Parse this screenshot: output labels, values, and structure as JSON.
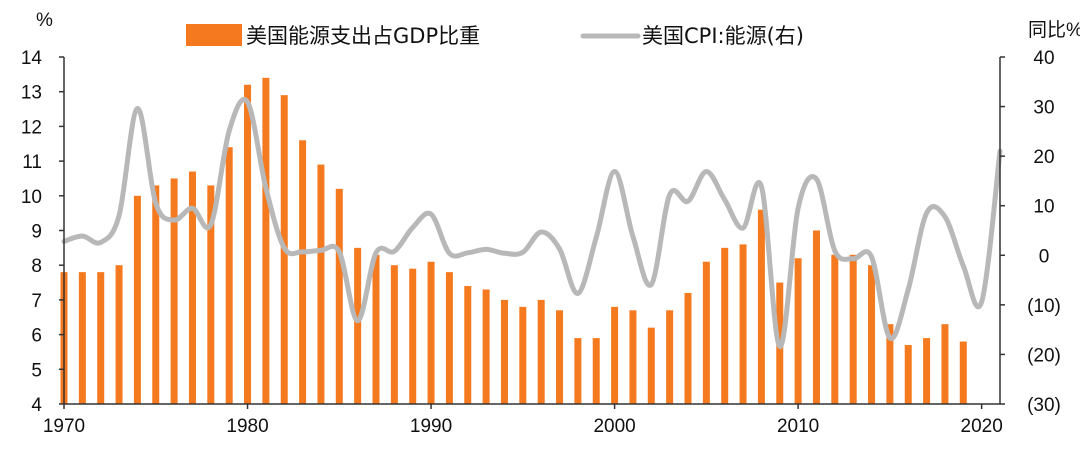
{
  "chart_data": {
    "type": "bar",
    "title": "",
    "left_axis": {
      "unit_label": "%",
      "min": 4,
      "max": 14,
      "ticks": [
        4,
        5,
        6,
        7,
        8,
        9,
        10,
        11,
        12,
        13,
        14
      ]
    },
    "right_axis": {
      "unit_label": "同比%",
      "min": -30,
      "max": 40,
      "ticks": [
        {
          "value": 40,
          "label": "40"
        },
        {
          "value": 30,
          "label": "30"
        },
        {
          "value": 20,
          "label": "20"
        },
        {
          "value": 10,
          "label": "10"
        },
        {
          "value": 0,
          "label": "0"
        },
        {
          "value": -10,
          "label": "(10)"
        },
        {
          "value": -20,
          "label": "(20)"
        },
        {
          "value": -30,
          "label": "(30)"
        }
      ],
      "negative_color": "#cc0000"
    },
    "x_axis": {
      "min": 1970,
      "max": 2021,
      "ticks": [
        1970,
        1980,
        1990,
        2000,
        2010,
        2020
      ]
    },
    "colors": {
      "bar": "#f57a1f",
      "line": "#b8b8b8",
      "axis": "#333333"
    },
    "legend": [
      {
        "label": "美国能源支出占GDP比重",
        "kind": "bar",
        "color": "#f57a1f"
      },
      {
        "label": "美国CPI:能源(右)",
        "kind": "line",
        "color": "#b8b8b8"
      }
    ],
    "series": [
      {
        "name": "美国能源支出占GDP比重",
        "type": "bar",
        "axis": "left",
        "x": [
          1970,
          1971,
          1972,
          1973,
          1974,
          1975,
          1976,
          1977,
          1978,
          1979,
          1980,
          1981,
          1982,
          1983,
          1984,
          1985,
          1986,
          1987,
          1988,
          1989,
          1990,
          1991,
          1992,
          1993,
          1994,
          1995,
          1996,
          1997,
          1998,
          1999,
          2000,
          2001,
          2002,
          2003,
          2004,
          2005,
          2006,
          2007,
          2008,
          2009,
          2010,
          2011,
          2012,
          2013,
          2014,
          2015,
          2016,
          2017,
          2018,
          2019
        ],
        "values": [
          7.8,
          7.8,
          7.8,
          8.0,
          10.0,
          10.3,
          10.5,
          10.7,
          10.3,
          11.4,
          13.2,
          13.4,
          12.9,
          11.6,
          10.9,
          10.2,
          8.5,
          8.3,
          8.0,
          7.9,
          8.1,
          7.8,
          7.4,
          7.3,
          7.0,
          6.8,
          7.0,
          6.7,
          5.9,
          5.9,
          6.8,
          6.7,
          6.2,
          6.7,
          7.2,
          8.1,
          8.5,
          8.6,
          9.6,
          7.5,
          8.2,
          9.0,
          8.3,
          8.3,
          8.0,
          6.3,
          5.7,
          5.9,
          6.3,
          5.8
        ]
      },
      {
        "name": "美国CPI:能源(右)",
        "type": "line",
        "axis": "right",
        "x": [
          1970,
          1971,
          1972,
          1973,
          1974,
          1975,
          1976,
          1977,
          1978,
          1979,
          1980,
          1981,
          1982,
          1983,
          1984,
          1985,
          1986,
          1987,
          1988,
          1989,
          1990,
          1991,
          1992,
          1993,
          1994,
          1995,
          1996,
          1997,
          1998,
          1999,
          2000,
          2001,
          2002,
          2003,
          2004,
          2005,
          2006,
          2007,
          2008,
          2009,
          2010,
          2011,
          2012,
          2013,
          2014,
          2015,
          2016,
          2017,
          2018,
          2019,
          2020,
          2021
        ],
        "values": [
          2.8,
          3.9,
          2.6,
          8.0,
          29.6,
          10.5,
          7.1,
          9.5,
          6.2,
          25.1,
          30.9,
          13.6,
          1.5,
          0.7,
          1.0,
          0.7,
          -13.2,
          0.5,
          0.8,
          5.6,
          8.3,
          0.4,
          0.5,
          1.2,
          0.4,
          0.6,
          4.7,
          1.3,
          -7.7,
          3.6,
          16.9,
          3.8,
          -5.9,
          12.2,
          10.9,
          16.9,
          11.2,
          5.5,
          13.9,
          -18.4,
          9.5,
          15.4,
          0.9,
          -0.7,
          -0.3,
          -16.7,
          -6.9,
          8.5,
          7.8,
          -2.1,
          -9.4,
          21.0
        ]
      }
    ]
  }
}
